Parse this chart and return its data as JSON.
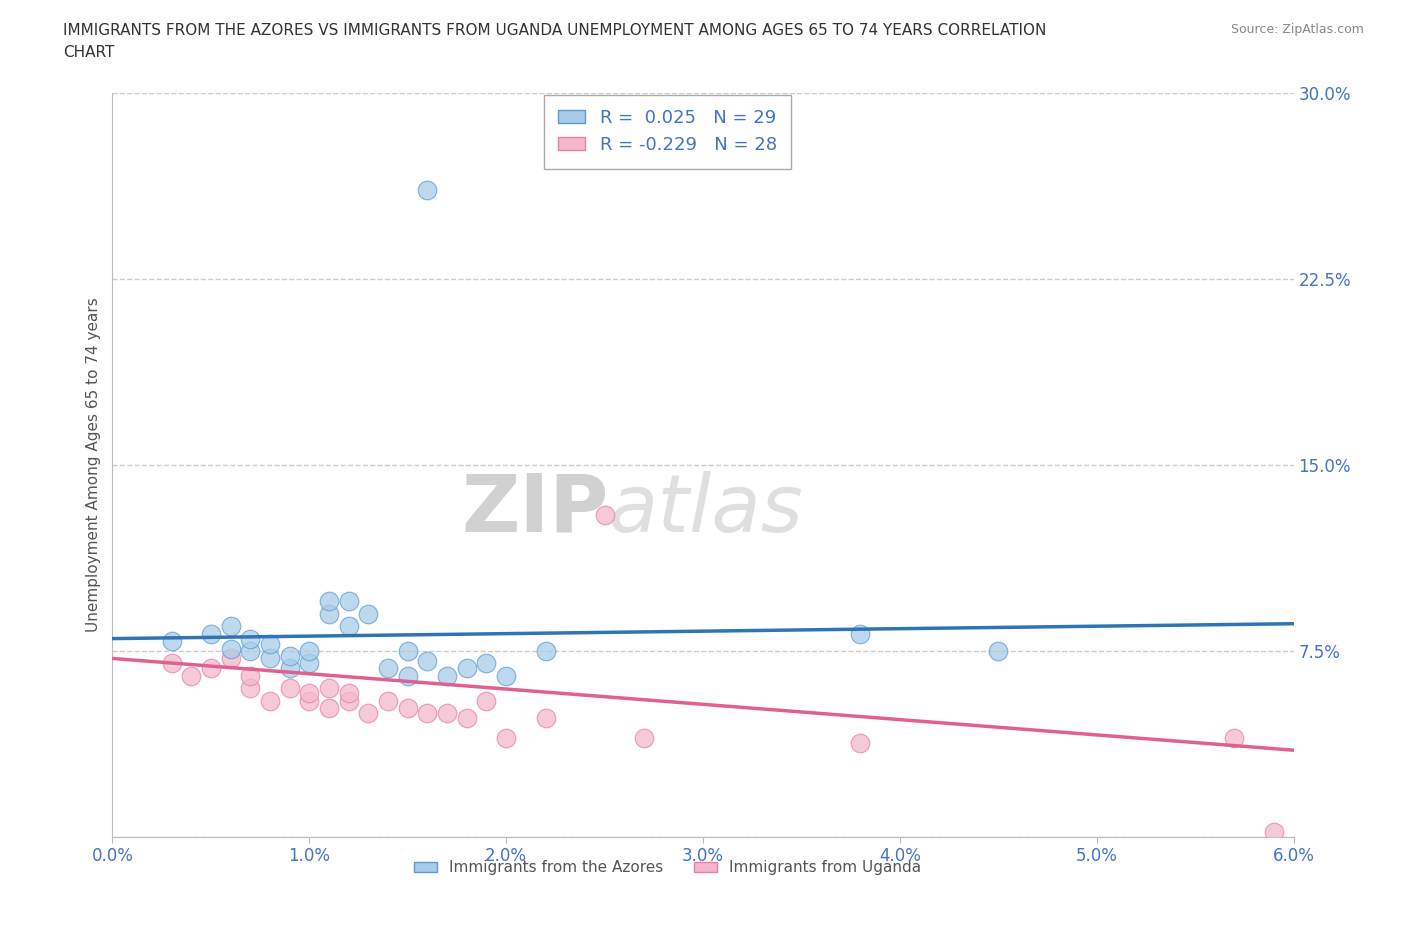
{
  "title_line1": "IMMIGRANTS FROM THE AZORES VS IMMIGRANTS FROM UGANDA UNEMPLOYMENT AMONG AGES 65 TO 74 YEARS CORRELATION",
  "title_line2": "CHART",
  "source": "Source: ZipAtlas.com",
  "ylabel": "Unemployment Among Ages 65 to 74 years",
  "xlim": [
    0.0,
    0.06
  ],
  "ylim": [
    0.0,
    0.3
  ],
  "yticks": [
    0.0,
    0.075,
    0.15,
    0.225,
    0.3
  ],
  "ytick_labels": [
    "",
    "7.5%",
    "15.0%",
    "22.5%",
    "30.0%"
  ],
  "xticks": [
    0.0,
    0.01,
    0.02,
    0.03,
    0.04,
    0.05,
    0.06
  ],
  "xtick_labels": [
    "0.0%",
    "1.0%",
    "2.0%",
    "3.0%",
    "4.0%",
    "5.0%",
    "6.0%"
  ],
  "blue_color": "#a8cce8",
  "pink_color": "#f4b8cb",
  "blue_edge_color": "#5b9bd5",
  "pink_edge_color": "#e87faa",
  "blue_line_color": "#2e75b6",
  "pink_line_color": "#e06090",
  "tick_label_color": "#4472c4",
  "R_blue": 0.025,
  "N_blue": 29,
  "R_pink": -0.229,
  "N_pink": 28,
  "legend_label_blue": "Immigrants from the Azores",
  "legend_label_pink": "Immigrants from Uganda",
  "blue_scatter_x": [
    0.003,
    0.005,
    0.006,
    0.006,
    0.007,
    0.007,
    0.008,
    0.008,
    0.009,
    0.009,
    0.01,
    0.01,
    0.011,
    0.011,
    0.012,
    0.012,
    0.013,
    0.014,
    0.015,
    0.015,
    0.016,
    0.017,
    0.018,
    0.019,
    0.02,
    0.022,
    0.038,
    0.045,
    0.016
  ],
  "blue_scatter_y": [
    0.079,
    0.082,
    0.076,
    0.085,
    0.075,
    0.08,
    0.072,
    0.078,
    0.068,
    0.073,
    0.07,
    0.075,
    0.09,
    0.095,
    0.085,
    0.095,
    0.09,
    0.068,
    0.075,
    0.065,
    0.071,
    0.065,
    0.068,
    0.07,
    0.065,
    0.075,
    0.082,
    0.075,
    0.261
  ],
  "pink_scatter_x": [
    0.003,
    0.004,
    0.005,
    0.006,
    0.007,
    0.007,
    0.008,
    0.009,
    0.01,
    0.01,
    0.011,
    0.011,
    0.012,
    0.012,
    0.013,
    0.014,
    0.015,
    0.016,
    0.017,
    0.018,
    0.019,
    0.02,
    0.022,
    0.025,
    0.027,
    0.038,
    0.057,
    0.059
  ],
  "pink_scatter_y": [
    0.07,
    0.065,
    0.068,
    0.072,
    0.06,
    0.065,
    0.055,
    0.06,
    0.055,
    0.058,
    0.052,
    0.06,
    0.055,
    0.058,
    0.05,
    0.055,
    0.052,
    0.05,
    0.05,
    0.048,
    0.055,
    0.04,
    0.048,
    0.13,
    0.04,
    0.038,
    0.04,
    0.002
  ],
  "blue_trend_x": [
    0.0,
    0.06
  ],
  "blue_trend_y": [
    0.08,
    0.086
  ],
  "pink_trend_x": [
    0.0,
    0.06
  ],
  "pink_trend_y": [
    0.072,
    0.035
  ],
  "watermark_zip": "ZIP",
  "watermark_atlas": "atlas",
  "grid_color": "#cccccc",
  "background_color": "#ffffff"
}
